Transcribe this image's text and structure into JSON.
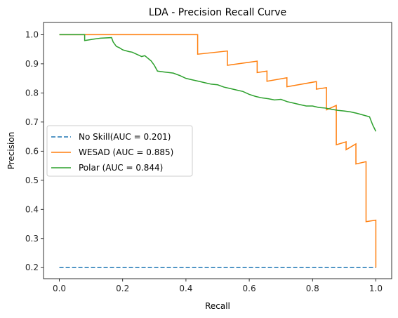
{
  "chart_data": {
    "type": "line",
    "title": "LDA - Precision Recall Curve",
    "xlabel": "Recall",
    "ylabel": "Precision",
    "xlim": [
      -0.05,
      1.05
    ],
    "ylim": [
      0.162,
      1.042
    ],
    "xticks": [
      0.0,
      0.2,
      0.4,
      0.6,
      0.8,
      1.0
    ],
    "xtick_labels": [
      "0.0",
      "0.2",
      "0.4",
      "0.6",
      "0.8",
      "1.0"
    ],
    "yticks": [
      0.2,
      0.3,
      0.4,
      0.5,
      0.6,
      0.7,
      0.8,
      0.9,
      1.0
    ],
    "ytick_labels": [
      "0.2",
      "0.3",
      "0.4",
      "0.5",
      "0.6",
      "0.7",
      "0.8",
      "0.9",
      "1.0"
    ],
    "grid": false,
    "legend_position": "center-left",
    "series": [
      {
        "name": "No Skill(AUC = 0.201)",
        "color": "#1f77b4",
        "dash": true,
        "x": [
          0.0,
          1.0
        ],
        "y": [
          0.2,
          0.2
        ]
      },
      {
        "name": "WESAD (AUC = 0.885)",
        "color": "#ff7f0e",
        "dash": false,
        "x": [
          0.0,
          0.437,
          0.437,
          0.531,
          0.531,
          0.625,
          0.625,
          0.656,
          0.656,
          0.719,
          0.719,
          0.812,
          0.812,
          0.844,
          0.844,
          0.875,
          0.875,
          0.906,
          0.906,
          0.937,
          0.937,
          0.969,
          0.969,
          1.0,
          1.0
        ],
        "y": [
          1.0,
          1.0,
          0.933,
          0.944,
          0.895,
          0.909,
          0.87,
          0.875,
          0.84,
          0.852,
          0.821,
          0.839,
          0.813,
          0.818,
          0.742,
          0.757,
          0.622,
          0.632,
          0.605,
          0.625,
          0.556,
          0.564,
          0.358,
          0.363,
          0.2
        ]
      },
      {
        "name": "Polar (AUC = 0.844)",
        "color": "#2ca02c",
        "dash": false,
        "x": [
          0.0,
          0.08,
          0.08,
          0.11,
          0.13,
          0.165,
          0.17,
          0.18,
          0.19,
          0.2,
          0.21,
          0.22,
          0.23,
          0.25,
          0.26,
          0.27,
          0.29,
          0.3,
          0.31,
          0.33,
          0.36,
          0.38,
          0.4,
          0.42,
          0.44,
          0.46,
          0.48,
          0.5,
          0.52,
          0.54,
          0.56,
          0.58,
          0.6,
          0.62,
          0.64,
          0.66,
          0.68,
          0.7,
          0.72,
          0.74,
          0.76,
          0.78,
          0.8,
          0.82,
          0.84,
          0.86,
          0.88,
          0.9,
          0.92,
          0.94,
          0.96,
          0.98,
          0.99,
          1.0
        ],
        "y": [
          1.0,
          1.0,
          0.98,
          0.985,
          0.988,
          0.99,
          0.975,
          0.96,
          0.955,
          0.948,
          0.945,
          0.942,
          0.94,
          0.93,
          0.925,
          0.928,
          0.91,
          0.895,
          0.875,
          0.872,
          0.868,
          0.86,
          0.85,
          0.845,
          0.84,
          0.835,
          0.83,
          0.828,
          0.82,
          0.815,
          0.81,
          0.805,
          0.795,
          0.788,
          0.783,
          0.78,
          0.776,
          0.778,
          0.77,
          0.765,
          0.76,
          0.755,
          0.755,
          0.75,
          0.748,
          0.744,
          0.74,
          0.738,
          0.735,
          0.73,
          0.724,
          0.718,
          0.69,
          0.668
        ]
      }
    ]
  }
}
